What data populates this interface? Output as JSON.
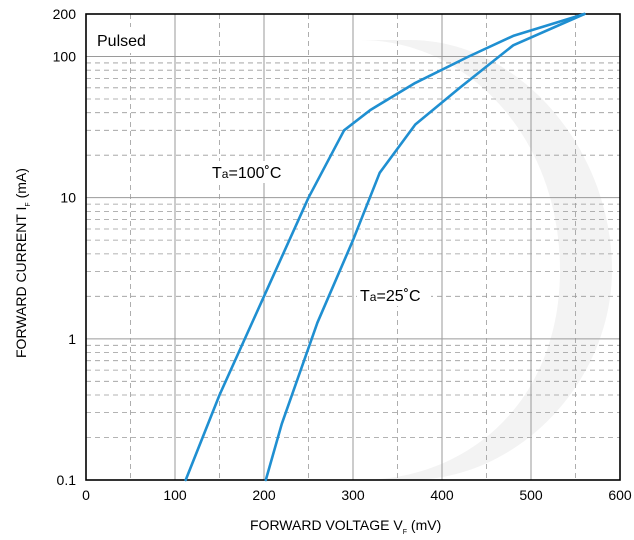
{
  "chart_data": {
    "type": "line",
    "xlabel": {
      "main": "FORWARD VOLTAGE",
      "symbol": "V",
      "subscript": "F",
      "unit": "(mV)"
    },
    "ylabel": {
      "main": "FORWARD CURRENT",
      "symbol": "I",
      "subscript": "F",
      "unit": "(mA)"
    },
    "xlim": [
      0,
      600
    ],
    "ylim": [
      0.1,
      200
    ],
    "yscale": "log",
    "x_ticks": [
      0,
      100,
      200,
      300,
      400,
      500,
      600
    ],
    "x_tick_labels": [
      "0",
      "100",
      "200",
      "300",
      "400",
      "500",
      "600"
    ],
    "y_ticks": [
      0.1,
      1,
      10,
      100,
      200
    ],
    "y_tick_labels": [
      "0.1",
      "1",
      "10",
      "100",
      "200"
    ],
    "x_minor_ticks": [
      50,
      150,
      250,
      350,
      450,
      550
    ],
    "grid": true,
    "annotations": [
      "Pulsed"
    ],
    "series": [
      {
        "name": "Ta=100˚C",
        "label_parts": {
          "prefix": "T",
          "sub": "a",
          "rest": "=100˚C"
        },
        "color": "#1f8fd1",
        "x": [
          112,
          150,
          200,
          250,
          290,
          320,
          370,
          430,
          480,
          560
        ],
        "y": [
          0.1,
          0.4,
          2,
          10,
          30,
          42,
          65,
          100,
          140,
          200
        ]
      },
      {
        "name": "Ta=25˚C",
        "label_parts": {
          "prefix": "T",
          "sub": "a",
          "rest": "=25˚C"
        },
        "color": "#1f8fd1",
        "x": [
          202,
          220,
          260,
          300,
          330,
          370,
          420,
          480,
          560
        ],
        "y": [
          0.1,
          0.25,
          1.3,
          5,
          15,
          33,
          60,
          120,
          200
        ]
      }
    ]
  }
}
